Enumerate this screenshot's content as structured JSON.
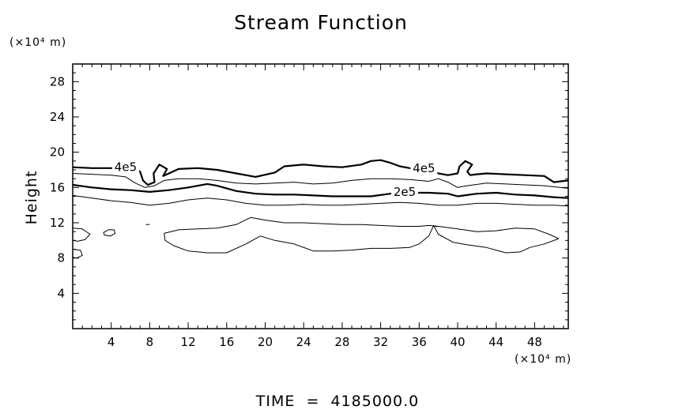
{
  "chart_data": {
    "type": "contour",
    "title": "Stream Function",
    "ylabel": "Height",
    "y_unit": "(×10⁴ m)",
    "x_unit": "(×10⁴ m)",
    "footer": "TIME  =  4185000.0",
    "xlim": [
      0,
      51.5
    ],
    "ylim": [
      0,
      30
    ],
    "x_ticks": [
      4,
      8,
      12,
      16,
      20,
      24,
      28,
      32,
      36,
      40,
      44,
      48
    ],
    "y_ticks": [
      4,
      8,
      12,
      16,
      20,
      24,
      28
    ],
    "grid": false,
    "contours": [
      {
        "level": "4e5",
        "weight": "bold",
        "label": "4e5",
        "label_points": [
          [
            5.5,
            18.3
          ],
          [
            36.5,
            18.2
          ]
        ],
        "points": [
          [
            0,
            18.3
          ],
          [
            2,
            18.2
          ],
          [
            4,
            18.2
          ],
          [
            6,
            18.3
          ],
          [
            7,
            17.8
          ],
          [
            7.3,
            16.8
          ],
          [
            7.8,
            16.3
          ],
          [
            8.5,
            16.6
          ],
          [
            8.4,
            17.6
          ],
          [
            9,
            18.6
          ],
          [
            9.8,
            18.1
          ],
          [
            9.4,
            17.3
          ],
          [
            10,
            17.6
          ],
          [
            11,
            18.1
          ],
          [
            13,
            18.2
          ],
          [
            15,
            18.0
          ],
          [
            17,
            17.6
          ],
          [
            19,
            17.2
          ],
          [
            21,
            17.7
          ],
          [
            22,
            18.4
          ],
          [
            24,
            18.6
          ],
          [
            26,
            18.4
          ],
          [
            28,
            18.3
          ],
          [
            30,
            18.6
          ],
          [
            31,
            19.0
          ],
          [
            32,
            19.1
          ],
          [
            33,
            18.8
          ],
          [
            34,
            18.4
          ],
          [
            35,
            18.2
          ],
          [
            36,
            18.2
          ],
          [
            37,
            18.0
          ],
          [
            38,
            17.6
          ],
          [
            39,
            17.4
          ],
          [
            40,
            17.6
          ],
          [
            40.2,
            18.4
          ],
          [
            40.8,
            19.0
          ],
          [
            41.5,
            18.6
          ],
          [
            41,
            17.8
          ],
          [
            41.3,
            17.4
          ],
          [
            42,
            17.5
          ],
          [
            43,
            17.6
          ],
          [
            45,
            17.5
          ],
          [
            47,
            17.4
          ],
          [
            49,
            17.3
          ],
          [
            50,
            16.6
          ],
          [
            51.5,
            16.8
          ]
        ]
      },
      {
        "level": "3e5",
        "weight": "thin",
        "label": "",
        "label_points": [],
        "points": [
          [
            0,
            17.6
          ],
          [
            2,
            17.5
          ],
          [
            4,
            17.4
          ],
          [
            5.5,
            17.2
          ],
          [
            6.5,
            16.5
          ],
          [
            7.5,
            16.0
          ],
          [
            8.5,
            16.2
          ],
          [
            9.5,
            16.8
          ],
          [
            11,
            17.0
          ],
          [
            13,
            17.0
          ],
          [
            15,
            16.8
          ],
          [
            17,
            16.5
          ],
          [
            19,
            16.4
          ],
          [
            21,
            16.5
          ],
          [
            23,
            16.6
          ],
          [
            25,
            16.4
          ],
          [
            27,
            16.5
          ],
          [
            29,
            16.8
          ],
          [
            31,
            17.0
          ],
          [
            33,
            17.0
          ],
          [
            35,
            16.9
          ],
          [
            37,
            16.7
          ],
          [
            38,
            17.0
          ],
          [
            39,
            16.6
          ],
          [
            40,
            16.0
          ],
          [
            41,
            16.2
          ],
          [
            43,
            16.5
          ],
          [
            45,
            16.4
          ],
          [
            47,
            16.3
          ],
          [
            49,
            16.2
          ],
          [
            51.5,
            15.9
          ]
        ]
      },
      {
        "level": "2e5",
        "weight": "bold",
        "label": "2e5",
        "label_points": [
          [
            34.5,
            15.5
          ]
        ],
        "points": [
          [
            0,
            16.3
          ],
          [
            2,
            16.0
          ],
          [
            4,
            15.8
          ],
          [
            6,
            15.7
          ],
          [
            8,
            15.5
          ],
          [
            10,
            15.7
          ],
          [
            12,
            16.0
          ],
          [
            14,
            16.4
          ],
          [
            15,
            16.2
          ],
          [
            17,
            15.6
          ],
          [
            19,
            15.3
          ],
          [
            21,
            15.2
          ],
          [
            23,
            15.2
          ],
          [
            25,
            15.1
          ],
          [
            27,
            15.0
          ],
          [
            29,
            15.0
          ],
          [
            31,
            15.0
          ],
          [
            33,
            15.3
          ],
          [
            35,
            15.4
          ],
          [
            37,
            15.4
          ],
          [
            39,
            15.3
          ],
          [
            40,
            15.0
          ],
          [
            42,
            15.3
          ],
          [
            44,
            15.4
          ],
          [
            46,
            15.2
          ],
          [
            48,
            15.1
          ],
          [
            50,
            14.9
          ],
          [
            51.5,
            14.8
          ]
        ]
      },
      {
        "level": "1e5",
        "weight": "thin",
        "label": "",
        "label_points": [],
        "points": [
          [
            0,
            15.1
          ],
          [
            2,
            14.8
          ],
          [
            4,
            14.5
          ],
          [
            6,
            14.3
          ],
          [
            8,
            14.0
          ],
          [
            10,
            14.2
          ],
          [
            12,
            14.6
          ],
          [
            14,
            14.8
          ],
          [
            16,
            14.6
          ],
          [
            18,
            14.2
          ],
          [
            20,
            14.0
          ],
          [
            22,
            14.0
          ],
          [
            24,
            14.1
          ],
          [
            26,
            14.0
          ],
          [
            28,
            14.0
          ],
          [
            30,
            14.1
          ],
          [
            32,
            14.2
          ],
          [
            34,
            14.3
          ],
          [
            36,
            14.2
          ],
          [
            38,
            14.0
          ],
          [
            40,
            14.0
          ],
          [
            42,
            14.2
          ],
          [
            44,
            14.2
          ],
          [
            46,
            14.1
          ],
          [
            48,
            14.0
          ],
          [
            50,
            14.0
          ],
          [
            51.5,
            13.9
          ]
        ]
      },
      {
        "level": "0",
        "weight": "thin",
        "closed": true,
        "label": "",
        "label_points": [],
        "points": [
          [
            9.5,
            10.8
          ],
          [
            11,
            11.2
          ],
          [
            13,
            11.3
          ],
          [
            15,
            11.4
          ],
          [
            17,
            11.8
          ],
          [
            18.5,
            12.6
          ],
          [
            20,
            12.3
          ],
          [
            22,
            12.0
          ],
          [
            24,
            12.0
          ],
          [
            26,
            11.9
          ],
          [
            28,
            11.8
          ],
          [
            30,
            11.8
          ],
          [
            32,
            11.7
          ],
          [
            34,
            11.6
          ],
          [
            36,
            11.6
          ],
          [
            37,
            11.7
          ],
          [
            38,
            11.6
          ],
          [
            40,
            11.3
          ],
          [
            42,
            11.0
          ],
          [
            44,
            11.1
          ],
          [
            46,
            11.4
          ],
          [
            48,
            11.3
          ],
          [
            49.5,
            10.7
          ],
          [
            50.5,
            10.2
          ],
          [
            49,
            9.6
          ],
          [
            47.5,
            9.2
          ],
          [
            46.5,
            8.7
          ],
          [
            45,
            8.6
          ],
          [
            43,
            9.2
          ],
          [
            41,
            9.5
          ],
          [
            39.5,
            9.8
          ],
          [
            38,
            10.7
          ],
          [
            37.5,
            11.7
          ],
          [
            37,
            10.5
          ],
          [
            36,
            9.6
          ],
          [
            35,
            9.2
          ],
          [
            33,
            9.1
          ],
          [
            31,
            9.1
          ],
          [
            29,
            8.9
          ],
          [
            27,
            8.8
          ],
          [
            25,
            8.8
          ],
          [
            23,
            9.6
          ],
          [
            21,
            10.0
          ],
          [
            19.5,
            10.5
          ],
          [
            18,
            9.6
          ],
          [
            16,
            8.6
          ],
          [
            14,
            8.6
          ],
          [
            12,
            8.8
          ],
          [
            10.5,
            9.4
          ],
          [
            9.6,
            10.0
          ],
          [
            9.5,
            10.8
          ]
        ]
      },
      {
        "level": "0",
        "weight": "thin",
        "closed": true,
        "label": "",
        "label_points": [],
        "points": [
          [
            0,
            11.4
          ],
          [
            1,
            11.3
          ],
          [
            1.8,
            10.7
          ],
          [
            1.3,
            10.1
          ],
          [
            0.5,
            9.9
          ],
          [
            0,
            10.0
          ],
          [
            0,
            11.4
          ]
        ]
      },
      {
        "level": "0",
        "weight": "thin",
        "closed": true,
        "label": "",
        "label_points": [],
        "points": [
          [
            0,
            9.0
          ],
          [
            0.8,
            8.9
          ],
          [
            1,
            8.3
          ],
          [
            0.4,
            8.0
          ],
          [
            0,
            8.1
          ],
          [
            0,
            9.0
          ]
        ]
      },
      {
        "level": "0",
        "weight": "thin",
        "closed": true,
        "label": "",
        "label_points": [],
        "points": [
          [
            3.2,
            10.9
          ],
          [
            3.7,
            11.2
          ],
          [
            4.3,
            11.2
          ],
          [
            4.4,
            10.8
          ],
          [
            3.9,
            10.5
          ],
          [
            3.3,
            10.6
          ],
          [
            3.2,
            10.9
          ]
        ]
      },
      {
        "level": "0",
        "weight": "thin",
        "closed": false,
        "label": "",
        "label_points": [],
        "points": [
          [
            7.6,
            11.8
          ],
          [
            8.0,
            11.8
          ]
        ]
      }
    ]
  }
}
